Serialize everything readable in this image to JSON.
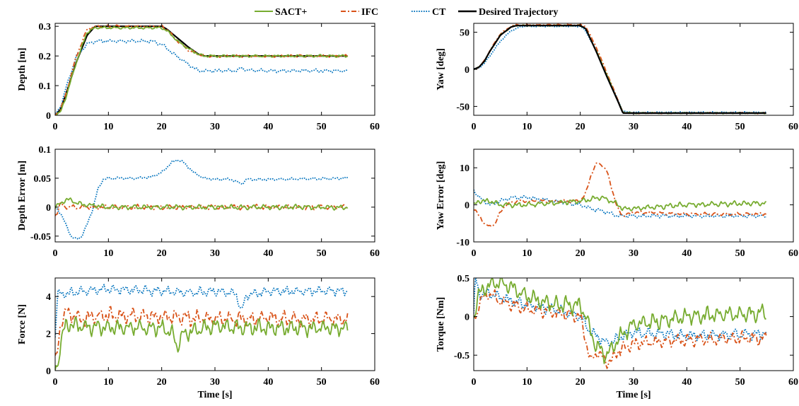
{
  "colors": {
    "sact": "#77AC30",
    "ifc": "#D95319",
    "ct": "#0072BD",
    "desired": "#000000"
  },
  "legend": {
    "entries": [
      {
        "key": "sact",
        "label": "SACT+",
        "dash": "solid"
      },
      {
        "key": "ifc",
        "label": "IFC",
        "dash": "dashdot"
      },
      {
        "key": "ct",
        "label": "CT",
        "dash": "dotted"
      },
      {
        "key": "desired",
        "label": "Desired Trajectory",
        "dash": "solid"
      }
    ]
  },
  "chart_data": [
    {
      "type": "line",
      "id": "depth",
      "ylabel": "Depth [m]",
      "xlabel": "",
      "xlim": [
        0,
        60
      ],
      "ylim": [
        0,
        0.31
      ],
      "xticks": [
        "0",
        "10",
        "20",
        "30",
        "40",
        "50",
        "60"
      ],
      "yticks": [
        {
          "v": 0,
          "t": "0"
        },
        {
          "v": 0.1,
          "t": "0.1"
        },
        {
          "v": 0.2,
          "t": "0.2"
        },
        {
          "v": 0.3,
          "t": "0.3"
        }
      ],
      "series": [
        {
          "key": "desired",
          "x": [
            0,
            1,
            2,
            4,
            6,
            7.5,
            8,
            20,
            21,
            23,
            25,
            27,
            28,
            55
          ],
          "y": [
            0,
            0.02,
            0.07,
            0.18,
            0.27,
            0.3,
            0.3,
            0.3,
            0.29,
            0.26,
            0.23,
            0.205,
            0.2,
            0.2
          ],
          "noise": 0
        },
        {
          "key": "ct",
          "x": [
            0,
            1,
            2,
            4,
            6,
            7.5,
            8,
            15,
            18,
            20,
            22,
            24,
            26,
            27,
            30,
            34,
            35,
            36,
            40,
            55
          ],
          "y": [
            0,
            0.03,
            0.09,
            0.2,
            0.24,
            0.25,
            0.25,
            0.25,
            0.25,
            0.24,
            0.21,
            0.185,
            0.16,
            0.15,
            0.15,
            0.15,
            0.16,
            0.152,
            0.15,
            0.15
          ],
          "noise": 0.004
        },
        {
          "key": "ifc",
          "x": [
            0,
            1,
            2,
            4,
            6,
            7.5,
            9,
            20,
            21,
            23,
            25,
            27,
            28,
            55
          ],
          "y": [
            0,
            0.02,
            0.07,
            0.2,
            0.29,
            0.3,
            0.3,
            0.3,
            0.29,
            0.25,
            0.22,
            0.205,
            0.2,
            0.2
          ],
          "noise": 0.003
        },
        {
          "key": "sact",
          "x": [
            0,
            1,
            2,
            4,
            6,
            7.5,
            9,
            20,
            21,
            23,
            25,
            27,
            28,
            55
          ],
          "y": [
            0,
            0.01,
            0.06,
            0.18,
            0.28,
            0.295,
            0.295,
            0.295,
            0.285,
            0.25,
            0.225,
            0.205,
            0.2,
            0.2
          ],
          "noise": 0.003
        }
      ]
    },
    {
      "type": "line",
      "id": "yaw",
      "ylabel": "Yaw [deg]",
      "xlabel": "",
      "xlim": [
        0,
        60
      ],
      "ylim": [
        -62,
        62
      ],
      "xticks": [
        "0",
        "10",
        "20",
        "30",
        "40",
        "50",
        "60"
      ],
      "yticks": [
        {
          "v": -50,
          "t": "-50"
        },
        {
          "v": 0,
          "t": "0"
        },
        {
          "v": 50,
          "t": "50"
        }
      ],
      "series": [
        {
          "key": "ct",
          "x": [
            0,
            1,
            2,
            3,
            5,
            7,
            9,
            10,
            20,
            21,
            23,
            25,
            27,
            28,
            30,
            55
          ],
          "y": [
            0,
            2,
            8,
            18,
            38,
            52,
            58,
            58,
            58,
            52,
            25,
            -10,
            -40,
            -57,
            -58,
            -58
          ],
          "noise": 0.6
        },
        {
          "key": "ifc",
          "x": [
            0,
            1,
            2,
            3,
            5,
            7,
            8,
            20,
            21,
            23,
            25,
            27,
            28,
            30,
            55
          ],
          "y": [
            0,
            3,
            12,
            25,
            48,
            58,
            60,
            60,
            58,
            30,
            -5,
            -40,
            -58,
            -59,
            -59
          ],
          "noise": 0.5
        },
        {
          "key": "sact",
          "x": [
            0,
            1,
            2,
            3,
            5,
            7,
            8,
            20,
            21,
            23,
            25,
            27,
            28,
            30,
            55
          ],
          "y": [
            0,
            3,
            11,
            24,
            46,
            57,
            59,
            59,
            55,
            25,
            -8,
            -42,
            -58,
            -59,
            -59
          ],
          "noise": 0.5
        },
        {
          "key": "desired",
          "x": [
            0,
            1,
            2,
            3,
            5,
            7,
            8,
            20,
            21,
            23,
            25,
            27,
            28,
            55
          ],
          "y": [
            0,
            3,
            11,
            24,
            46,
            57,
            59,
            59,
            55,
            24,
            -10,
            -42,
            -59,
            -59
          ],
          "noise": 0
        }
      ]
    },
    {
      "type": "line",
      "id": "depth-error",
      "ylabel": "Depth Error [m]",
      "xlabel": "",
      "xlim": [
        0,
        60
      ],
      "ylim": [
        -0.06,
        0.1
      ],
      "xticks": [
        "0",
        "10",
        "20",
        "30",
        "40",
        "50",
        "60"
      ],
      "yticks": [
        {
          "v": -0.05,
          "t": "-0.05"
        },
        {
          "v": 0,
          "t": "0"
        },
        {
          "v": 0.05,
          "t": "0.05"
        },
        {
          "v": 0.1,
          "t": "0.1"
        }
      ],
      "series": [
        {
          "key": "ct",
          "x": [
            0,
            1,
            2,
            3,
            4,
            5,
            6,
            7,
            8,
            9,
            10,
            15,
            18,
            20,
            22,
            23,
            24,
            26,
            28,
            30,
            33,
            35,
            36,
            40,
            55
          ],
          "y": [
            0,
            -0.01,
            -0.03,
            -0.05,
            -0.056,
            -0.05,
            -0.03,
            -0.005,
            0.03,
            0.048,
            0.05,
            0.05,
            0.052,
            0.06,
            0.078,
            0.082,
            0.078,
            0.06,
            0.05,
            0.048,
            0.048,
            0.04,
            0.048,
            0.048,
            0.05
          ],
          "noise": 0.0015
        },
        {
          "key": "ifc",
          "x": [
            0,
            1,
            2,
            5,
            10,
            20,
            30,
            40,
            55
          ],
          "y": [
            -0.015,
            0.005,
            0,
            0,
            0,
            0,
            0,
            0,
            0
          ],
          "noise": 0.003
        },
        {
          "key": "sact",
          "x": [
            0,
            1,
            2,
            5,
            10,
            20,
            30,
            40,
            55
          ],
          "y": [
            0,
            0.005,
            0.014,
            0.005,
            0,
            0,
            0,
            0,
            0
          ],
          "noise": 0.003
        }
      ]
    },
    {
      "type": "line",
      "id": "yaw-error",
      "ylabel": "Yaw Error [deg]",
      "xlabel": "",
      "xlim": [
        0,
        60
      ],
      "ylim": [
        -10,
        15
      ],
      "xticks": [
        "0",
        "10",
        "20",
        "30",
        "40",
        "50",
        "60"
      ],
      "yticks": [
        {
          "v": -10,
          "t": "-10"
        },
        {
          "v": 0,
          "t": "0"
        },
        {
          "v": 10,
          "t": "10"
        }
      ],
      "series": [
        {
          "key": "ct",
          "x": [
            0,
            1,
            3,
            5,
            7,
            10,
            15,
            20,
            22,
            25,
            27,
            28,
            30,
            40,
            55
          ],
          "y": [
            4,
            2,
            0,
            1,
            2,
            2,
            1,
            0,
            -1,
            -2,
            -3,
            -3,
            -3,
            -3,
            -3
          ],
          "noise": 0.35
        },
        {
          "key": "ifc",
          "x": [
            0,
            1,
            2,
            3,
            4,
            5,
            6,
            8,
            10,
            15,
            20,
            21,
            22,
            23,
            24,
            25,
            26,
            27,
            28,
            30,
            40,
            55
          ],
          "y": [
            -1,
            -3,
            -5,
            -6,
            -5,
            -2,
            0,
            1,
            1,
            1,
            1,
            3,
            8,
            11,
            11,
            9,
            4,
            -1,
            -3,
            -2,
            -2.5,
            -2.5
          ],
          "noise": 0.3
        },
        {
          "key": "sact",
          "x": [
            0,
            1,
            3,
            5,
            10,
            15,
            20,
            22,
            24,
            26,
            28,
            30,
            40,
            55
          ],
          "y": [
            0,
            1,
            1,
            0,
            0,
            0.5,
            1,
            1.5,
            2,
            1,
            -1,
            -1,
            0,
            0.5
          ],
          "noise": 0.5
        }
      ]
    },
    {
      "type": "line",
      "id": "force",
      "ylabel": "Force [N]",
      "xlabel": "Time [s]",
      "xlim": [
        0,
        60
      ],
      "ylim": [
        0,
        5
      ],
      "xticks": [
        "0",
        "10",
        "20",
        "30",
        "40",
        "50",
        "60"
      ],
      "yticks": [
        {
          "v": 0,
          "t": "0"
        },
        {
          "v": 2,
          "t": "2"
        },
        {
          "v": 4,
          "t": "4"
        }
      ],
      "series": [
        {
          "key": "ct",
          "x": [
            0,
            0.5,
            1,
            5,
            10,
            20,
            25,
            30,
            34,
            35,
            36,
            40,
            55
          ],
          "y": [
            2,
            4.2,
            4.1,
            4.3,
            4.4,
            4.3,
            4.2,
            4.3,
            4.1,
            3.2,
            4.1,
            4.3,
            4.3
          ],
          "noise": 0.18
        },
        {
          "key": "ifc",
          "x": [
            0,
            0.5,
            1,
            2,
            3,
            5,
            10,
            20,
            30,
            40,
            55
          ],
          "y": [
            0.5,
            1,
            2.5,
            3.2,
            3,
            2.8,
            3,
            2.9,
            2.8,
            2.8,
            2.8
          ],
          "noise": 0.3
        },
        {
          "key": "sact",
          "x": [
            0,
            0.5,
            1,
            2,
            3,
            5,
            10,
            20,
            22,
            23,
            24,
            30,
            40,
            55
          ],
          "y": [
            0.1,
            0.3,
            1.5,
            2.5,
            2.5,
            2.4,
            2.3,
            2.3,
            2,
            1.3,
            2,
            2.4,
            2.3,
            2.3
          ],
          "noise": 0.3
        }
      ]
    },
    {
      "type": "line",
      "id": "torque",
      "ylabel": "Torque [Nm]",
      "xlabel": "Time [s]",
      "xlim": [
        0,
        60
      ],
      "ylim": [
        -0.7,
        0.5
      ],
      "xticks": [
        "0",
        "10",
        "20",
        "30",
        "40",
        "50",
        "60"
      ],
      "yticks": [
        {
          "v": -0.5,
          "t": "-0.5"
        },
        {
          "v": 0,
          "t": "0"
        },
        {
          "v": 0.5,
          "t": "0.5"
        }
      ],
      "series": [
        {
          "key": "ct",
          "x": [
            0,
            0.3,
            1,
            3,
            5,
            10,
            15,
            20,
            22,
            25,
            28,
            30,
            40,
            55
          ],
          "y": [
            0,
            0.5,
            0.3,
            0.3,
            0.25,
            0.15,
            0.1,
            0,
            -0.2,
            -0.35,
            -0.25,
            -0.2,
            -0.25,
            -0.22
          ],
          "noise": 0.05
        },
        {
          "key": "ifc",
          "x": [
            0,
            0.3,
            1,
            3,
            5,
            10,
            15,
            20,
            21,
            22,
            23,
            25,
            26,
            27,
            30,
            40,
            55
          ],
          "y": [
            0,
            -0.05,
            0.2,
            0.3,
            0.2,
            0.1,
            0.05,
            0,
            -0.3,
            -0.6,
            -0.45,
            -0.6,
            -0.55,
            -0.45,
            -0.35,
            -0.3,
            -0.28
          ],
          "noise": 0.06
        },
        {
          "key": "sact",
          "x": [
            0,
            0.3,
            1,
            3,
            5,
            10,
            15,
            20,
            21,
            23,
            25,
            27,
            30,
            40,
            55
          ],
          "y": [
            0,
            0.1,
            0.3,
            0.4,
            0.45,
            0.25,
            0.15,
            0.15,
            0,
            -0.4,
            -0.5,
            -0.3,
            -0.1,
            0,
            0.05
          ],
          "noise": 0.08
        }
      ]
    }
  ]
}
